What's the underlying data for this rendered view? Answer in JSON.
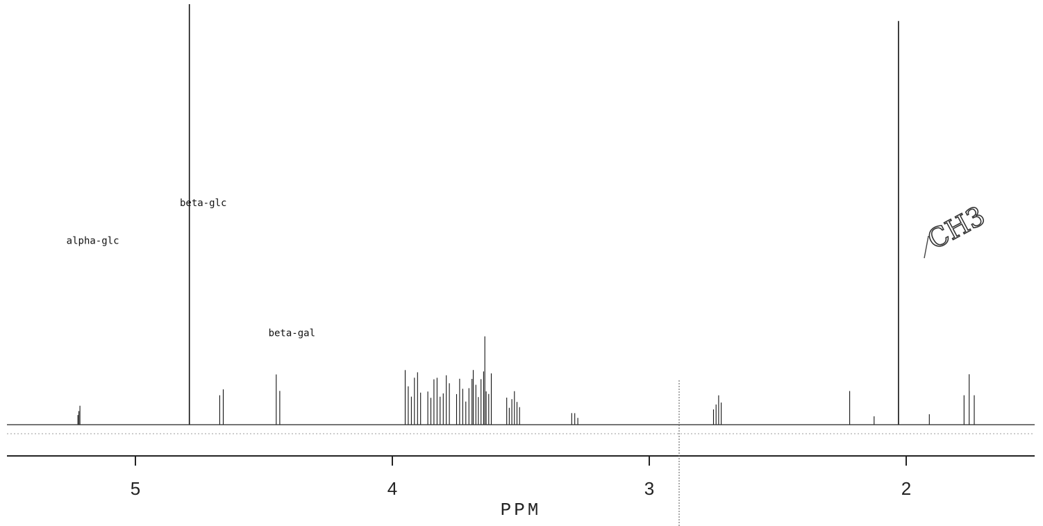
{
  "chart_data": {
    "type": "line",
    "title": "",
    "xlabel": "PPM",
    "ylabel": "",
    "x_reversed": true,
    "xlim": [
      5.5,
      1.5
    ],
    "ylim": [
      0,
      100
    ],
    "grid": false,
    "x_ticks": [
      5,
      4,
      3,
      2
    ],
    "x_tick_labels": [
      "5",
      "4",
      "3",
      "2"
    ],
    "baseline_level": 0,
    "peaks": [
      {
        "ppm": 5.22,
        "height": 4.5,
        "lines": 3,
        "spacing": 0.004
      },
      {
        "ppm": 4.79,
        "height": 100,
        "lines": 1,
        "spacing": 0
      },
      {
        "ppm": 4.665,
        "height": 13,
        "lines": 2,
        "spacing": 0.014
      },
      {
        "ppm": 4.445,
        "height": 16,
        "lines": 2,
        "spacing": 0.014
      },
      {
        "ppm": 3.92,
        "height": 13,
        "lines": 6,
        "spacing": 0.012
      },
      {
        "ppm": 3.82,
        "height": 12,
        "lines": 8,
        "spacing": 0.012
      },
      {
        "ppm": 3.72,
        "height": 11,
        "lines": 6,
        "spacing": 0.012
      },
      {
        "ppm": 3.65,
        "height": 13,
        "lines": 8,
        "spacing": 0.01
      },
      {
        "ppm": 3.64,
        "height": 21,
        "lines": 1,
        "spacing": 0
      },
      {
        "ppm": 3.53,
        "height": 8,
        "lines": 6,
        "spacing": 0.01
      },
      {
        "ppm": 3.29,
        "height": 3,
        "lines": 3,
        "spacing": 0.012
      },
      {
        "ppm": 2.735,
        "height": 7,
        "lines": 4,
        "spacing": 0.01
      },
      {
        "ppm": 2.22,
        "height": 8,
        "lines": 1,
        "spacing": 0
      },
      {
        "ppm": 2.125,
        "height": 2,
        "lines": 1,
        "spacing": 0
      },
      {
        "ppm": 2.03,
        "height": 96,
        "lines": 1,
        "spacing": 0
      },
      {
        "ppm": 1.91,
        "height": 2.5,
        "lines": 1,
        "spacing": 0
      },
      {
        "ppm": 1.775,
        "height": 7,
        "lines": 1,
        "spacing": 0
      },
      {
        "ppm": 1.755,
        "height": 12,
        "lines": 1,
        "spacing": 0
      },
      {
        "ppm": 1.735,
        "height": 7,
        "lines": 1,
        "spacing": 0
      }
    ],
    "annotations": [
      {
        "text": "alpha-glc",
        "ppm": 5.22,
        "y": 43
      },
      {
        "text": "beta-glc",
        "ppm": 4.79,
        "y": 52
      },
      {
        "text": "beta-gal",
        "ppm": 4.445,
        "y": 21
      }
    ],
    "handwritten_note": "CH3"
  }
}
